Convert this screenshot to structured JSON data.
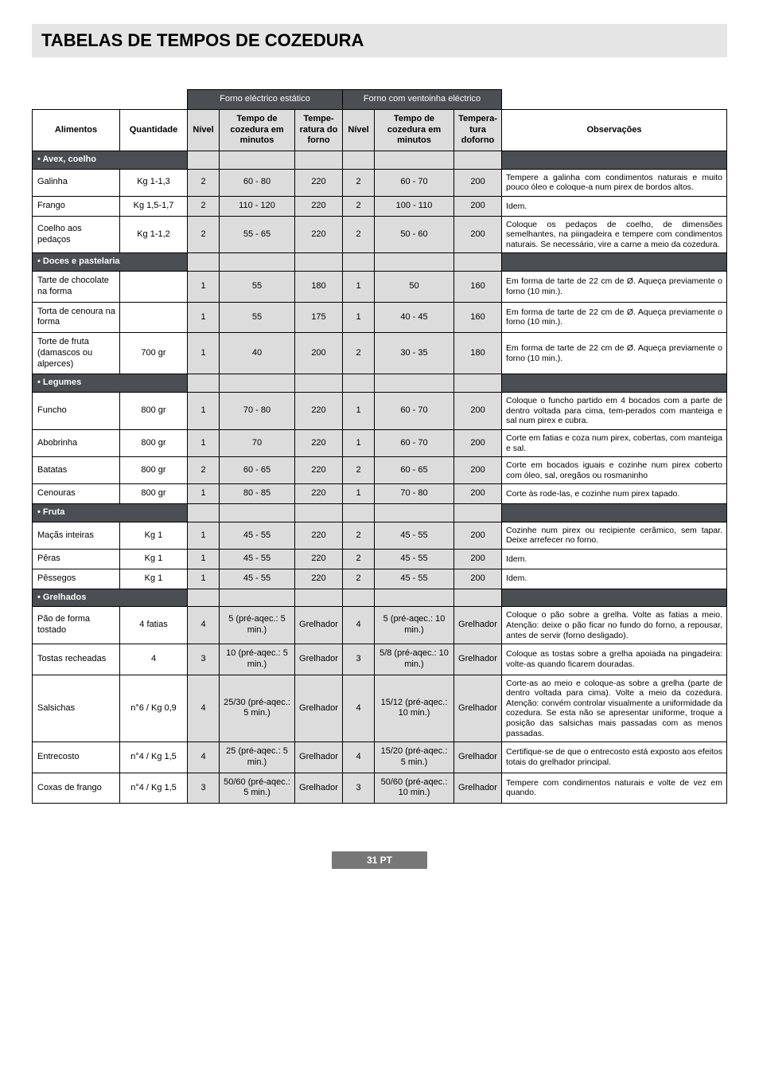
{
  "title": "TABELAS DE TEMPOS DE COZEDURA",
  "colgroup_headers": {
    "group1": "Forno eléctrico estático",
    "group2": "Forno com ventoinha eléctrico"
  },
  "headers": {
    "alimentos": "Alimentos",
    "quantidade": "Quantidade",
    "nivel1": "Nível",
    "tempo1": "Tempo de cozedura em minutos",
    "temp1": "Tempe-ratura do forno",
    "nivel2": "Nível",
    "tempo2": "Tempo de cozedura em minutos",
    "temp2": "Tempera-tura doforno",
    "obs": "Observações"
  },
  "sections": [
    {
      "label": "• Avex, coelho",
      "rows": [
        {
          "food": "Galinha",
          "qty": "Kg 1-1,3",
          "n1": "2",
          "t1": "60 - 80",
          "te1": "220",
          "n2": "2",
          "t2": "60 - 70",
          "te2": "200",
          "obs": "Tempere a galinha com condimentos naturais e muito pouco óleo e coloque-a num pirex de bordos altos."
        },
        {
          "food": "Frango",
          "qty": "Kg 1,5-1,7",
          "n1": "2",
          "t1": "110 - 120",
          "te1": "220",
          "n2": "2",
          "t2": "100 - 110",
          "te2": "200",
          "obs": "Idem."
        },
        {
          "food": "Coelho aos pedaços",
          "qty": "Kg 1-1,2",
          "n1": "2",
          "t1": "55 - 65",
          "te1": "220",
          "n2": "2",
          "t2": "50 - 60",
          "te2": "200",
          "obs": "Coloque os pedaços de coelho, de dimensões semelhantes, na piingadeira e tempere com condimentos naturais. Se necessário, vire a carne a meio da cozedura."
        }
      ]
    },
    {
      "label": "• Doces e pastelaria",
      "rows": [
        {
          "food": "Tarte de chocolate na forma",
          "qty": "",
          "n1": "1",
          "t1": "55",
          "te1": "180",
          "n2": "1",
          "t2": "50",
          "te2": "160",
          "obs": "Em forma de tarte de 22 cm de Ø. Aqueça previamente o forno (10 min.)."
        },
        {
          "food": "Torta de cenoura na forma",
          "qty": "",
          "n1": "1",
          "t1": "55",
          "te1": "175",
          "n2": "1",
          "t2": "40 - 45",
          "te2": "160",
          "obs": "Em forma de tarte de 22 cm de Ø. Aqueça previamente o forno (10 min.)."
        },
        {
          "food": "Torte de fruta (damascos ou alperces)",
          "qty": "700 gr",
          "n1": "1",
          "t1": "40",
          "te1": "200",
          "n2": "2",
          "t2": "30 - 35",
          "te2": "180",
          "obs": "Em forma de tarte de 22 cm de Ø. Aqueça previamente o forno (10 min.)."
        }
      ]
    },
    {
      "label": "• Legumes",
      "rows": [
        {
          "food": "Funcho",
          "qty": "800 gr",
          "n1": "1",
          "t1": "70 - 80",
          "te1": "220",
          "n2": "1",
          "t2": "60 - 70",
          "te2": "200",
          "obs": "Coloque o funcho partido em 4 bocados com a parte de dentro voltada para cima, tem-perados com manteiga e sal num pirex e cubra."
        },
        {
          "food": "Abobrinha",
          "qty": "800 gr",
          "n1": "1",
          "t1": "70",
          "te1": "220",
          "n2": "1",
          "t2": "60 - 70",
          "te2": "200",
          "obs": "Corte em fatias e coza num pirex, cobertas, com manteiga e sal."
        },
        {
          "food": "Batatas",
          "qty": "800 gr",
          "n1": "2",
          "t1": "60 - 65",
          "te1": "220",
          "n2": "2",
          "t2": "60 - 65",
          "te2": "200",
          "obs": "Corte em bocados iguais e cozinhe num pirex coberto com óleo, sal, oregãos ou rosmaninho"
        },
        {
          "food": "Cenouras",
          "qty": "800 gr",
          "n1": "1",
          "t1": "80 - 85",
          "te1": "220",
          "n2": "1",
          "t2": "70 - 80",
          "te2": "200",
          "obs": "Corte às rode-las, e cozinhe num pirex tapado."
        }
      ]
    },
    {
      "label": "• Fruta",
      "rows": [
        {
          "food": "Maçãs inteiras",
          "qty": "Kg 1",
          "n1": "1",
          "t1": "45 - 55",
          "te1": "220",
          "n2": "2",
          "t2": "45 - 55",
          "te2": "200",
          "obs": "Cozinhe num pirex ou recipiente cerâmico, sem tapar. Deixe arrefecer no forno."
        },
        {
          "food": "Pêras",
          "qty": "Kg 1",
          "n1": "1",
          "t1": "45 - 55",
          "te1": "220",
          "n2": "2",
          "t2": "45 - 55",
          "te2": "200",
          "obs": "Idem."
        },
        {
          "food": "Pêssegos",
          "qty": "Kg 1",
          "n1": "1",
          "t1": "45 - 55",
          "te1": "220",
          "n2": "2",
          "t2": "45 - 55",
          "te2": "200",
          "obs": "Idem."
        }
      ]
    },
    {
      "label": "• Grelhados",
      "rows": [
        {
          "food": "Pão de forma tostado",
          "qty": "4 fatias",
          "n1": "4",
          "t1": "5 (pré-aqec.: 5 min.)",
          "te1": "Grelhador",
          "n2": "4",
          "t2": "5 (pré-aqec.: 10 min.)",
          "te2": "Grelhador",
          "obs": "Coloque o pão sobre a grelha. Volte as fatias a meio. Atenção: deixe o pão ficar no fundo do forno, a repousar, antes de servir (forno desligado)."
        },
        {
          "food": "Tostas recheadas",
          "qty": "4",
          "n1": "3",
          "t1": "10 (pré-aqec.: 5 min.)",
          "te1": "Grelhador",
          "n2": "3",
          "t2": "5/8 (pré-aqec.: 10 min.)",
          "te2": "Grelhador",
          "obs": "Coloque as tostas sobre a grelha apoiada na pingadeira: volte-as quando ficarem douradas."
        },
        {
          "food": "Salsichas",
          "qty": "n°6 / Kg 0,9",
          "n1": "4",
          "t1": "25/30 (pré-aqec.: 5 min.)",
          "te1": "Grelhador",
          "n2": "4",
          "t2": "15/12 (pré-aqec.: 10 min.)",
          "te2": "Grelhador",
          "obs": "Corte-as ao meio e coloque-as sobre a grelha (parte de dentro voltada para cima). Volte a meio da cozedura. Atenção: convém controlar visualmente a uniformidade da cozedura. Se esta não se apresentar uniforme, troque a posição das salsichas mais passadas com as menos passadas."
        },
        {
          "food": "Entrecosto",
          "qty": "n°4 / Kg 1,5",
          "n1": "4",
          "t1": "25 (pré-aqec.: 5 min.)",
          "te1": "Grelhador",
          "n2": "4",
          "t2": "15/20 (pré-aqec.: 5 min.)",
          "te2": "Grelhador",
          "obs": "Certifique-se de que o entrecosto está exposto aos efeitos totais do grelhador principal."
        },
        {
          "food": "Coxas de frango",
          "qty": "n°4 / Kg 1,5",
          "n1": "3",
          "t1": "50/60 (pré-aqec.: 5 min.)",
          "te1": "Grelhador",
          "n2": "3",
          "t2": "50/60 (pré-aqec.: 10 min.)",
          "te2": "Grelhador",
          "obs": "Tempere com condimentos naturais e volte de vez em quando."
        }
      ]
    }
  ],
  "footer": "31 PT"
}
